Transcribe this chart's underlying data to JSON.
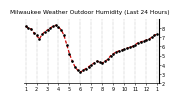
{
  "title": "Milwaukee Weather Outdoor Humidity (Last 24 Hours)",
  "y_values": [
    82,
    80,
    79,
    75,
    72,
    68,
    73,
    76,
    78,
    80,
    82,
    83,
    81,
    78,
    72,
    62,
    52,
    44,
    38,
    34,
    32,
    34,
    36,
    38,
    40,
    42,
    44,
    43,
    42,
    44,
    46,
    50,
    52,
    54,
    55,
    56,
    57,
    58,
    59,
    60,
    62,
    64,
    65,
    66,
    67,
    68,
    70,
    72,
    74
  ],
  "line_color": "#cc0000",
  "marker_color": "#000000",
  "bg_color": "#ffffff",
  "grid_color": "#888888",
  "ylim": [
    20,
    90
  ],
  "ytick_values": [
    20,
    30,
    40,
    50,
    60,
    70,
    80
  ],
  "ytick_labels": [
    "2",
    "3",
    "4",
    "5",
    "6",
    "7",
    "8"
  ],
  "xtick_labels": [
    "1",
    "1",
    "1",
    "1",
    "1",
    "1",
    "1",
    "1",
    "1",
    "1",
    "1",
    "1",
    "1"
  ],
  "num_xticks": 13,
  "title_fontsize": 4.2,
  "tick_fontsize": 3.5,
  "line_width": 0.9,
  "marker_size": 1.8
}
